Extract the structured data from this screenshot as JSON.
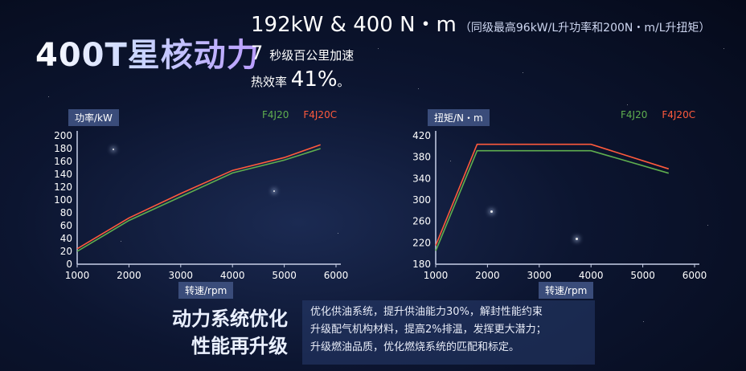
{
  "headline": "400T星核动力",
  "specs": {
    "power_torque": "192kW & 400 N・m",
    "power_torque_note": "（同级最高96kW/L升功率和200N・m/L升扭矩）",
    "accel_value": "7",
    "accel_text": "秒级百公里加速",
    "efficiency_label": "热效率",
    "efficiency_value": "41%",
    "efficiency_suffix": "。"
  },
  "bottom": {
    "title_line1": "动力系统优化",
    "title_line2": "性能再升级",
    "desc_line1": "优化供油系统，提升供油能力30%，解封性能约束",
    "desc_line2": "升级配气机构材料，提高2%排温，发挥更大潜力；",
    "desc_line3": "升级燃油品质，优化燃烧系统的匹配和标定。"
  },
  "colors": {
    "F4J20": "#5fae4f",
    "F4J20C": "#ff5a3c",
    "label_box": "#3a4c7a"
  },
  "chart_data": [
    {
      "type": "line",
      "title": "",
      "ylabel": "功率/kW",
      "xlabel": "转速/rpm",
      "xlim": [
        1000,
        6000
      ],
      "ylim": [
        0,
        200
      ],
      "xticks": [
        1000,
        2000,
        3000,
        4000,
        5000,
        6000
      ],
      "yticks": [
        0,
        20,
        40,
        60,
        80,
        100,
        120,
        140,
        160,
        180,
        200
      ],
      "grid": false,
      "legend_position": "top-right",
      "series": [
        {
          "name": "F4J20",
          "x": [
            1000,
            2000,
            3000,
            4000,
            5000,
            5700
          ],
          "y": [
            20,
            68,
            105,
            142,
            162,
            180
          ]
        },
        {
          "name": "F4J20C",
          "x": [
            1000,
            2000,
            3000,
            4000,
            5000,
            5700
          ],
          "y": [
            24,
            72,
            110,
            146,
            166,
            186
          ]
        }
      ]
    },
    {
      "type": "line",
      "title": "",
      "ylabel": "扭矩/N・m",
      "xlabel": "转速/rpm",
      "xlim": [
        1000,
        6000
      ],
      "ylim": [
        180,
        420
      ],
      "xticks": [
        1000,
        2000,
        3000,
        4000,
        5000,
        6000
      ],
      "yticks": [
        180,
        220,
        260,
        300,
        340,
        380,
        420
      ],
      "grid": false,
      "legend_position": "top-right",
      "series": [
        {
          "name": "F4J20",
          "x": [
            1000,
            1800,
            4000,
            5500
          ],
          "y": [
            205,
            392,
            392,
            350
          ]
        },
        {
          "name": "F4J20C",
          "x": [
            1000,
            1800,
            4000,
            5500
          ],
          "y": [
            215,
            404,
            404,
            358
          ]
        }
      ]
    }
  ]
}
